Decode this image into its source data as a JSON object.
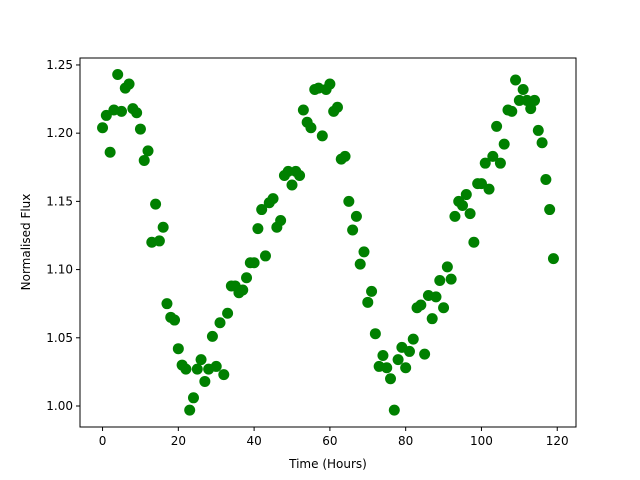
{
  "chart_data": {
    "type": "scatter",
    "xlabel": "Time (Hours)",
    "ylabel": "Normalised Flux",
    "color": "#008000",
    "x": [
      0,
      1,
      2,
      3,
      4,
      5,
      6,
      7,
      8,
      9,
      10,
      11,
      12,
      13,
      14,
      15,
      16,
      17,
      18,
      19,
      20,
      21,
      22,
      23,
      24,
      25,
      26,
      27,
      28,
      29,
      30,
      31,
      32,
      33,
      34,
      35,
      36,
      37,
      38,
      39,
      40,
      41,
      42,
      43,
      44,
      45,
      46,
      47,
      48,
      49,
      50,
      51,
      52,
      53,
      54,
      55,
      56,
      57,
      58,
      59,
      60,
      61,
      62,
      63,
      64,
      65,
      66,
      67,
      68,
      69,
      70,
      71,
      72,
      73,
      74,
      75,
      76,
      77,
      78,
      79,
      80,
      81,
      82,
      83,
      84,
      85,
      86,
      87,
      88,
      89,
      90,
      91,
      92,
      93,
      94,
      95,
      96,
      97,
      98,
      99,
      100,
      101,
      102,
      103,
      104,
      105,
      106,
      107,
      108,
      109,
      110,
      111,
      112,
      113,
      114,
      115,
      116,
      117,
      118,
      119
    ],
    "values": [
      1.204,
      1.213,
      1.186,
      1.217,
      1.243,
      1.216,
      1.233,
      1.236,
      1.218,
      1.215,
      1.203,
      1.18,
      1.187,
      1.12,
      1.148,
      1.121,
      1.131,
      1.075,
      1.065,
      1.063,
      1.042,
      1.03,
      1.027,
      0.997,
      1.006,
      1.027,
      1.034,
      1.018,
      1.027,
      1.051,
      1.029,
      1.061,
      1.023,
      1.068,
      1.088,
      1.088,
      1.083,
      1.085,
      1.094,
      1.105,
      1.105,
      1.13,
      1.144,
      1.11,
      1.149,
      1.152,
      1.131,
      1.136,
      1.169,
      1.172,
      1.162,
      1.172,
      1.169,
      1.217,
      1.208,
      1.204,
      1.232,
      1.233,
      1.198,
      1.232,
      1.236,
      1.216,
      1.219,
      1.181,
      1.183,
      1.15,
      1.129,
      1.139,
      1.104,
      1.113,
      1.076,
      1.084,
      1.053,
      1.029,
      1.037,
      1.028,
      1.02,
      0.997,
      1.034,
      1.043,
      1.028,
      1.04,
      1.049,
      1.072,
      1.074,
      1.038,
      1.081,
      1.064,
      1.08,
      1.092,
      1.072,
      1.102,
      1.093,
      1.139,
      1.15,
      1.147,
      1.155,
      1.141,
      1.12,
      1.163,
      1.163,
      1.178,
      1.159,
      1.183,
      1.205,
      1.178,
      1.192,
      1.217,
      1.216,
      1.239,
      1.224,
      1.232,
      1.224,
      1.218,
      1.224,
      1.202,
      1.193,
      1.166,
      1.144,
      1.108
    ],
    "xlim": [
      -5.95,
      124.95
    ],
    "xticks": [
      0,
      20,
      40,
      60,
      80,
      100,
      120
    ],
    "ylim": [
      0.9846,
      1.2551
    ],
    "yticks": [
      {
        "value": 1.0,
        "label": "1.00"
      },
      1.05,
      {
        "value": 1.1,
        "label": "1.10"
      },
      1.15,
      {
        "value": 1.2,
        "label": "1.20"
      },
      1.25
    ]
  }
}
